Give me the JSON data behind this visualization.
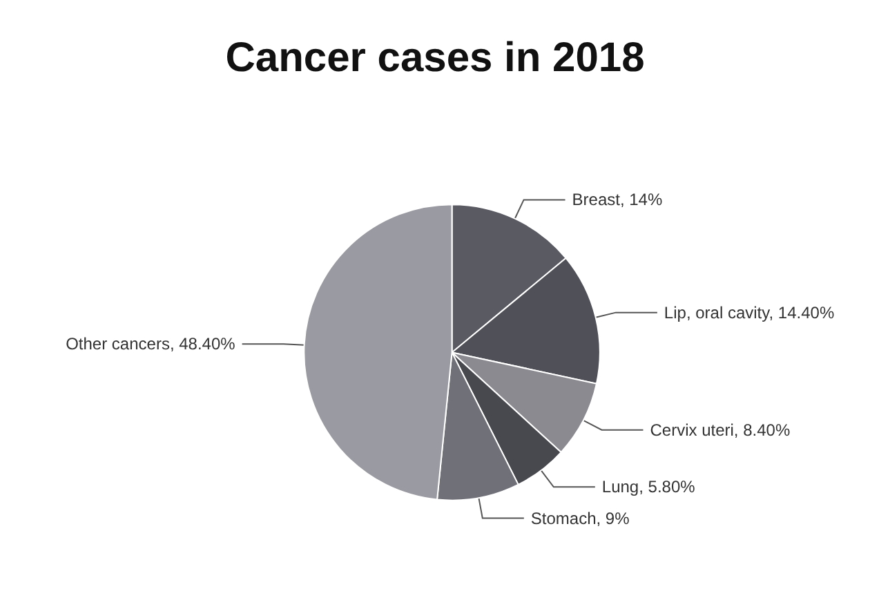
{
  "chart_data": {
    "type": "pie",
    "title": "Cancer cases in 2018",
    "categories": [
      "Breast",
      "Lip, oral cavity",
      "Cervix uteri",
      "Lung",
      "Stomach",
      "Other cancers"
    ],
    "values": [
      14,
      14.4,
      8.4,
      5.8,
      9,
      48.4
    ],
    "value_labels": [
      "14%",
      "14.40%",
      "8.40%",
      "5.80%",
      "9%",
      "48.40%"
    ],
    "colors": [
      "#5a5a62",
      "#505058",
      "#8a8a90",
      "#48484f",
      "#707078",
      "#9a9aa2"
    ]
  }
}
